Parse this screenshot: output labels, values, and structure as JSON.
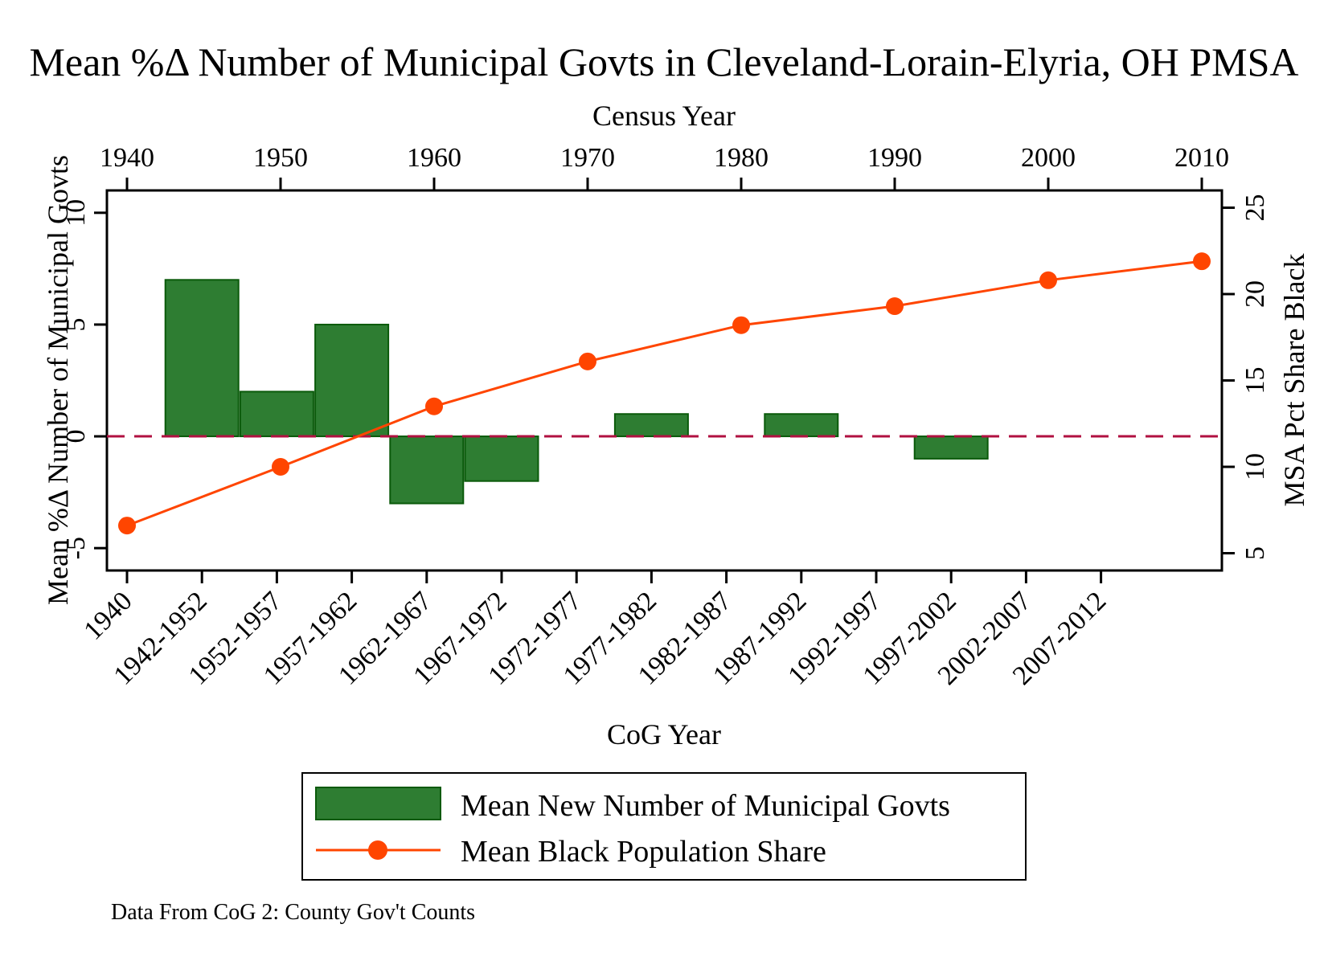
{
  "chart_data": {
    "type": "bar+line",
    "title": "Mean %Δ Number of Municipal Govts in Cleveland-Lorain-Elyria, OH PMSA",
    "note": "Data From CoG 2: County Gov't Counts",
    "bottom_axis": {
      "label": "CoG Year",
      "ticks": [
        "1940",
        "1942-1952",
        "1952-1957",
        "1957-1962",
        "1962-1967",
        "1967-1972",
        "1972-1977",
        "1977-1982",
        "1982-1987",
        "1987-1992",
        "1992-1997",
        "1997-2002",
        "2002-2007",
        "2007-2012"
      ]
    },
    "top_axis": {
      "label": "Census Year",
      "ticks": [
        "1940",
        "1950",
        "1960",
        "1970",
        "1980",
        "1990",
        "2000",
        "2010"
      ]
    },
    "left_axis": {
      "label": "Mean %Δ Number of Municipal Govts",
      "ticks": [
        "-5",
        "0",
        "5",
        "10"
      ],
      "range": [
        -6,
        11
      ]
    },
    "right_axis": {
      "label": "MSA Pct Share Black",
      "ticks": [
        "5",
        "10",
        "15",
        "20",
        "25"
      ],
      "range": [
        4,
        26
      ]
    },
    "bars": {
      "name": "Mean New Number of Municipal Govts",
      "color": "#2e7d32",
      "categories": [
        "1942-1952",
        "1952-1957",
        "1957-1962",
        "1962-1967",
        "1967-1972",
        "1977-1982",
        "1987-1992",
        "1997-2002"
      ],
      "values": [
        7,
        2,
        5,
        -3,
        -2,
        1,
        1,
        -1
      ]
    },
    "line": {
      "name": "Mean Black Population Share",
      "color": "#ff4500",
      "x": [
        1940,
        1950,
        1960,
        1970,
        1980,
        1990,
        2000,
        2010
      ],
      "values": [
        6.6,
        10.0,
        13.5,
        16.1,
        18.2,
        19.3,
        20.8,
        21.9
      ]
    },
    "reference_line": {
      "axis": "left",
      "value": 0,
      "color": "#b01040",
      "style": "dashed"
    },
    "grid": false,
    "legend_position": "bottom"
  }
}
